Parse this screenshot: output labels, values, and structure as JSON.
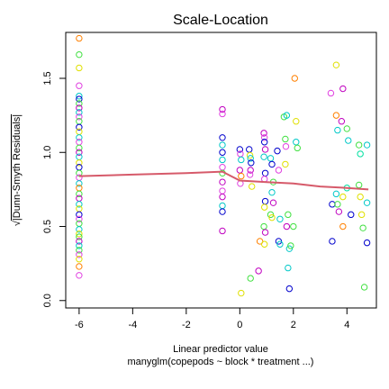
{
  "chart_data": {
    "type": "scatter",
    "title": "Scale-Location",
    "xlabel": "Linear predictor value",
    "subtitle": "manyglm(copepods ~ block * treatment ...)",
    "ylabel_sqrt": "√",
    "ylabel": "|Dunn-Smyth Residuals|",
    "xlim": [
      -6.5,
      5.1
    ],
    "ylim": [
      -0.05,
      1.81
    ],
    "x_ticks": [
      {
        "value": -6,
        "label": "-6"
      },
      {
        "value": -4,
        "label": "-4"
      },
      {
        "value": -2,
        "label": "-2"
      },
      {
        "value": 0,
        "label": "0"
      },
      {
        "value": 2,
        "label": "2"
      },
      {
        "value": 4,
        "label": "4"
      }
    ],
    "y_ticks": [
      {
        "value": 0.0,
        "label": "0.0"
      },
      {
        "value": 0.5,
        "label": "0.5"
      },
      {
        "value": 1.0,
        "label": "1.0"
      },
      {
        "value": 1.5,
        "label": "1.5"
      }
    ],
    "grid": false,
    "point_colors": [
      "#e040e0",
      "#00c8c8",
      "#0000cc",
      "#40e040",
      "#e0e000",
      "#ff8000",
      "#c000c0",
      "#00e0a0"
    ],
    "points": [
      {
        "x": -6,
        "y": 1.77,
        "c": 5
      },
      {
        "x": -6,
        "y": 1.66,
        "c": 3
      },
      {
        "x": -6,
        "y": 1.57,
        "c": 4
      },
      {
        "x": -6,
        "y": 1.45,
        "c": 0
      },
      {
        "x": -6,
        "y": 1.38,
        "c": 1
      },
      {
        "x": -6,
        "y": 1.36,
        "c": 2
      },
      {
        "x": -6,
        "y": 1.33,
        "c": 3
      },
      {
        "x": -6,
        "y": 1.3,
        "c": 6
      },
      {
        "x": -6,
        "y": 1.27,
        "c": 1
      },
      {
        "x": -6,
        "y": 1.24,
        "c": 0
      },
      {
        "x": -6,
        "y": 1.21,
        "c": 3
      },
      {
        "x": -6,
        "y": 1.17,
        "c": 2
      },
      {
        "x": -6,
        "y": 1.14,
        "c": 4
      },
      {
        "x": -6,
        "y": 1.1,
        "c": 1
      },
      {
        "x": -6,
        "y": 1.07,
        "c": 0
      },
      {
        "x": -6,
        "y": 1.03,
        "c": 3
      },
      {
        "x": -6,
        "y": 1.0,
        "c": 6
      },
      {
        "x": -6,
        "y": 0.97,
        "c": 1
      },
      {
        "x": -6,
        "y": 0.93,
        "c": 4
      },
      {
        "x": -6,
        "y": 0.9,
        "c": 2
      },
      {
        "x": -6,
        "y": 0.86,
        "c": 3
      },
      {
        "x": -6,
        "y": 0.83,
        "c": 0
      },
      {
        "x": -6,
        "y": 0.79,
        "c": 1
      },
      {
        "x": -6,
        "y": 0.76,
        "c": 5
      },
      {
        "x": -6,
        "y": 0.72,
        "c": 3
      },
      {
        "x": -6,
        "y": 0.69,
        "c": 6
      },
      {
        "x": -6,
        "y": 0.65,
        "c": 1
      },
      {
        "x": -6,
        "y": 0.62,
        "c": 4
      },
      {
        "x": -6,
        "y": 0.58,
        "c": 2
      },
      {
        "x": -6,
        "y": 0.55,
        "c": 0
      },
      {
        "x": -6,
        "y": 0.52,
        "c": 3
      },
      {
        "x": -6,
        "y": 0.48,
        "c": 1
      },
      {
        "x": -6,
        "y": 0.45,
        "c": 4
      },
      {
        "x": -6,
        "y": 0.43,
        "c": 3
      },
      {
        "x": -6,
        "y": 0.4,
        "c": 6
      },
      {
        "x": -6,
        "y": 0.37,
        "c": 1
      },
      {
        "x": -6,
        "y": 0.34,
        "c": 3
      },
      {
        "x": -6,
        "y": 0.31,
        "c": 0
      },
      {
        "x": -6,
        "y": 0.28,
        "c": 4
      },
      {
        "x": -6,
        "y": 0.23,
        "c": 5
      },
      {
        "x": -6,
        "y": 0.17,
        "c": 0
      },
      {
        "x": -0.65,
        "y": 1.29,
        "c": 6
      },
      {
        "x": -0.65,
        "y": 1.26,
        "c": 0
      },
      {
        "x": -0.65,
        "y": 1.1,
        "c": 2
      },
      {
        "x": -0.65,
        "y": 1.05,
        "c": 1
      },
      {
        "x": -0.65,
        "y": 1.0,
        "c": 2
      },
      {
        "x": -0.65,
        "y": 0.95,
        "c": 1
      },
      {
        "x": -0.65,
        "y": 0.9,
        "c": 0
      },
      {
        "x": -0.65,
        "y": 0.86,
        "c": 3
      },
      {
        "x": -0.65,
        "y": 0.8,
        "c": 6
      },
      {
        "x": -0.65,
        "y": 0.74,
        "c": 0
      },
      {
        "x": -0.65,
        "y": 0.7,
        "c": 6
      },
      {
        "x": -0.65,
        "y": 0.64,
        "c": 1
      },
      {
        "x": -0.65,
        "y": 0.6,
        "c": 2
      },
      {
        "x": -0.65,
        "y": 0.47,
        "c": 6
      },
      {
        "x": 0.0,
        "y": 1.02,
        "c": 2
      },
      {
        "x": 0.02,
        "y": 0.99,
        "c": 0
      },
      {
        "x": 0.05,
        "y": 0.95,
        "c": 1
      },
      {
        "x": 0.0,
        "y": 0.88,
        "c": 6
      },
      {
        "x": 0.05,
        "y": 0.84,
        "c": 5
      },
      {
        "x": 0.02,
        "y": 0.79,
        "c": 0
      },
      {
        "x": 0.05,
        "y": 0.05,
        "c": 4
      },
      {
        "x": 0.35,
        "y": 1.02,
        "c": 2
      },
      {
        "x": 0.38,
        "y": 0.98,
        "c": 4
      },
      {
        "x": 0.4,
        "y": 0.96,
        "c": 1
      },
      {
        "x": 0.42,
        "y": 0.93,
        "c": 2
      },
      {
        "x": 0.4,
        "y": 0.88,
        "c": 6
      },
      {
        "x": 0.38,
        "y": 0.85,
        "c": 0
      },
      {
        "x": 0.45,
        "y": 0.77,
        "c": 4
      },
      {
        "x": 0.4,
        "y": 0.15,
        "c": 3
      },
      {
        "x": 0.7,
        "y": 0.2,
        "c": 6
      },
      {
        "x": 0.75,
        "y": 0.4,
        "c": 5
      },
      {
        "x": 0.9,
        "y": 1.13,
        "c": 6
      },
      {
        "x": 0.92,
        "y": 1.1,
        "c": 0
      },
      {
        "x": 0.92,
        "y": 1.07,
        "c": 2
      },
      {
        "x": 0.95,
        "y": 1.02,
        "c": 6
      },
      {
        "x": 0.9,
        "y": 0.97,
        "c": 1
      },
      {
        "x": 0.95,
        "y": 0.86,
        "c": 2
      },
      {
        "x": 0.92,
        "y": 0.82,
        "c": 0
      },
      {
        "x": 0.95,
        "y": 0.67,
        "c": 2
      },
      {
        "x": 0.92,
        "y": 0.63,
        "c": 4
      },
      {
        "x": 0.9,
        "y": 0.5,
        "c": 3
      },
      {
        "x": 0.95,
        "y": 0.46,
        "c": 6
      },
      {
        "x": 0.92,
        "y": 0.38,
        "c": 4
      },
      {
        "x": 1.15,
        "y": 0.96,
        "c": 1
      },
      {
        "x": 1.2,
        "y": 0.92,
        "c": 2
      },
      {
        "x": 1.25,
        "y": 0.8,
        "c": 3
      },
      {
        "x": 1.2,
        "y": 0.73,
        "c": 1
      },
      {
        "x": 1.25,
        "y": 0.66,
        "c": 6
      },
      {
        "x": 1.15,
        "y": 0.58,
        "c": 3
      },
      {
        "x": 1.2,
        "y": 0.56,
        "c": 4
      },
      {
        "x": 1.4,
        "y": 1.01,
        "c": 2
      },
      {
        "x": 1.45,
        "y": 0.88,
        "c": 0
      },
      {
        "x": 1.5,
        "y": 0.55,
        "c": 1
      },
      {
        "x": 1.45,
        "y": 0.4,
        "c": 2
      },
      {
        "x": 1.5,
        "y": 0.38,
        "c": 1
      },
      {
        "x": 1.65,
        "y": 1.24,
        "c": 3
      },
      {
        "x": 1.75,
        "y": 1.25,
        "c": 1
      },
      {
        "x": 1.7,
        "y": 1.09,
        "c": 3
      },
      {
        "x": 1.72,
        "y": 1.04,
        "c": 0
      },
      {
        "x": 1.7,
        "y": 0.92,
        "c": 4
      },
      {
        "x": 1.8,
        "y": 0.58,
        "c": 3
      },
      {
        "x": 1.75,
        "y": 0.5,
        "c": 6
      },
      {
        "x": 1.85,
        "y": 0.35,
        "c": 1
      },
      {
        "x": 1.8,
        "y": 0.22,
        "c": 1
      },
      {
        "x": 1.85,
        "y": 0.08,
        "c": 2
      },
      {
        "x": 1.9,
        "y": 0.37,
        "c": 3
      },
      {
        "x": 2.05,
        "y": 1.5,
        "c": 5
      },
      {
        "x": 2.1,
        "y": 1.21,
        "c": 4
      },
      {
        "x": 2.1,
        "y": 1.07,
        "c": 1
      },
      {
        "x": 2.15,
        "y": 1.03,
        "c": 3
      },
      {
        "x": 2.0,
        "y": 0.5,
        "c": 3
      },
      {
        "x": 3.4,
        "y": 1.4,
        "c": 0
      },
      {
        "x": 3.45,
        "y": 0.65,
        "c": 2
      },
      {
        "x": 3.45,
        "y": 0.4,
        "c": 2
      },
      {
        "x": 3.6,
        "y": 1.59,
        "c": 4
      },
      {
        "x": 3.6,
        "y": 1.25,
        "c": 5
      },
      {
        "x": 3.65,
        "y": 1.15,
        "c": 1
      },
      {
        "x": 3.6,
        "y": 0.72,
        "c": 1
      },
      {
        "x": 3.65,
        "y": 0.65,
        "c": 3
      },
      {
        "x": 3.7,
        "y": 0.6,
        "c": 6
      },
      {
        "x": 3.85,
        "y": 1.43,
        "c": 6
      },
      {
        "x": 3.8,
        "y": 1.21,
        "c": 6
      },
      {
        "x": 3.85,
        "y": 0.7,
        "c": 4
      },
      {
        "x": 3.85,
        "y": 0.5,
        "c": 5
      },
      {
        "x": 4.0,
        "y": 1.16,
        "c": 3
      },
      {
        "x": 4.05,
        "y": 1.08,
        "c": 1
      },
      {
        "x": 4.0,
        "y": 0.76,
        "c": 7
      },
      {
        "x": 4.15,
        "y": 0.58,
        "c": 2
      },
      {
        "x": 4.45,
        "y": 1.05,
        "c": 3
      },
      {
        "x": 4.5,
        "y": 0.99,
        "c": 7
      },
      {
        "x": 4.45,
        "y": 0.78,
        "c": 3
      },
      {
        "x": 4.5,
        "y": 0.7,
        "c": 4
      },
      {
        "x": 4.55,
        "y": 0.58,
        "c": 4
      },
      {
        "x": 4.6,
        "y": 0.49,
        "c": 3
      },
      {
        "x": 4.65,
        "y": 0.09,
        "c": 3
      },
      {
        "x": 4.75,
        "y": 1.05,
        "c": 1
      },
      {
        "x": 4.75,
        "y": 0.66,
        "c": 1
      },
      {
        "x": 4.75,
        "y": 0.39,
        "c": 2
      }
    ],
    "trend_color": "#d65a6a",
    "trend_line": [
      {
        "x": -6.0,
        "y": 0.84
      },
      {
        "x": -4.0,
        "y": 0.85
      },
      {
        "x": -2.0,
        "y": 0.86
      },
      {
        "x": -0.65,
        "y": 0.87
      },
      {
        "x": 0.0,
        "y": 0.81
      },
      {
        "x": 1.0,
        "y": 0.8
      },
      {
        "x": 2.0,
        "y": 0.79
      },
      {
        "x": 3.0,
        "y": 0.77
      },
      {
        "x": 4.0,
        "y": 0.76
      },
      {
        "x": 4.8,
        "y": 0.75
      }
    ]
  }
}
